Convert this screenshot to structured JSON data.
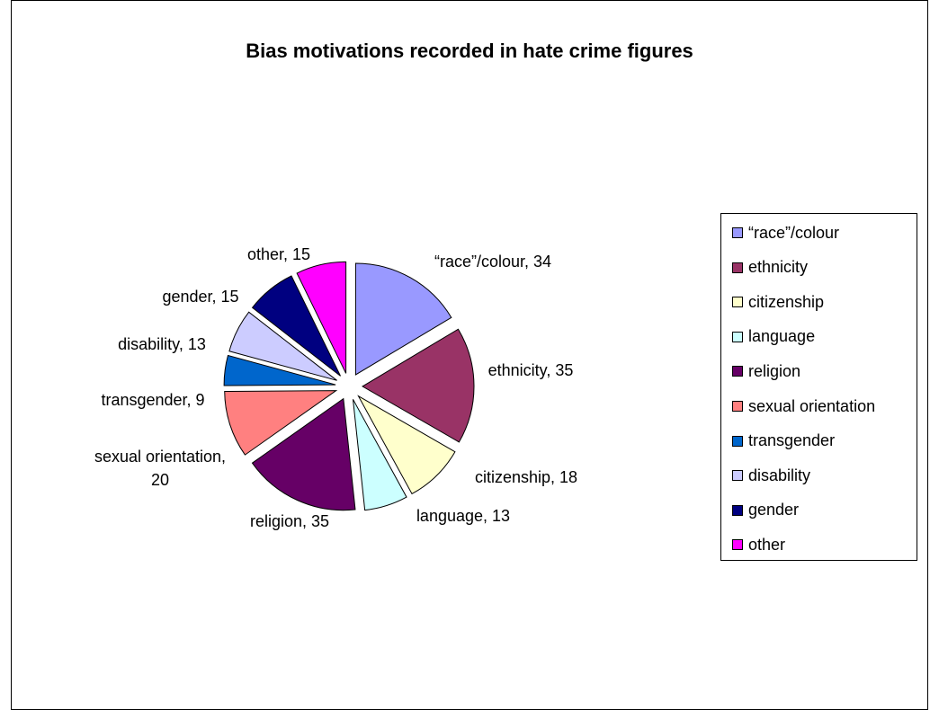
{
  "chart_data": {
    "type": "pie",
    "title": "Bias motivations recorded in hate crime figures",
    "exploded": true,
    "legend_position": "right",
    "slices": [
      {
        "label": "“race”/colour",
        "value": 34,
        "color": "#9999FF",
        "data_label": "“race”/colour, 34"
      },
      {
        "label": "ethnicity",
        "value": 35,
        "color": "#993366",
        "data_label": "ethnicity, 35"
      },
      {
        "label": "citizenship",
        "value": 18,
        "color": "#FFFFCC",
        "data_label": "citizenship, 18"
      },
      {
        "label": "language",
        "value": 13,
        "color": "#CCFFFF",
        "data_label": "language, 13"
      },
      {
        "label": "religion",
        "value": 35,
        "color": "#660066",
        "data_label": "religion, 35"
      },
      {
        "label": "sexual orientation",
        "value": 20,
        "color": "#FF8080",
        "data_label": "sexual orientation, 20",
        "data_label_lines": [
          "sexual orientation,",
          "20"
        ]
      },
      {
        "label": "transgender",
        "value": 9,
        "color": "#0066CC",
        "data_label": "transgender, 9"
      },
      {
        "label": "disability",
        "value": 13,
        "color": "#CCCCFF",
        "data_label": "disability, 13"
      },
      {
        "label": "gender",
        "value": 15,
        "color": "#000080",
        "data_label": "gender, 15"
      },
      {
        "label": "other",
        "value": 15,
        "color": "#FF00FF",
        "data_label": "other, 15"
      }
    ]
  }
}
